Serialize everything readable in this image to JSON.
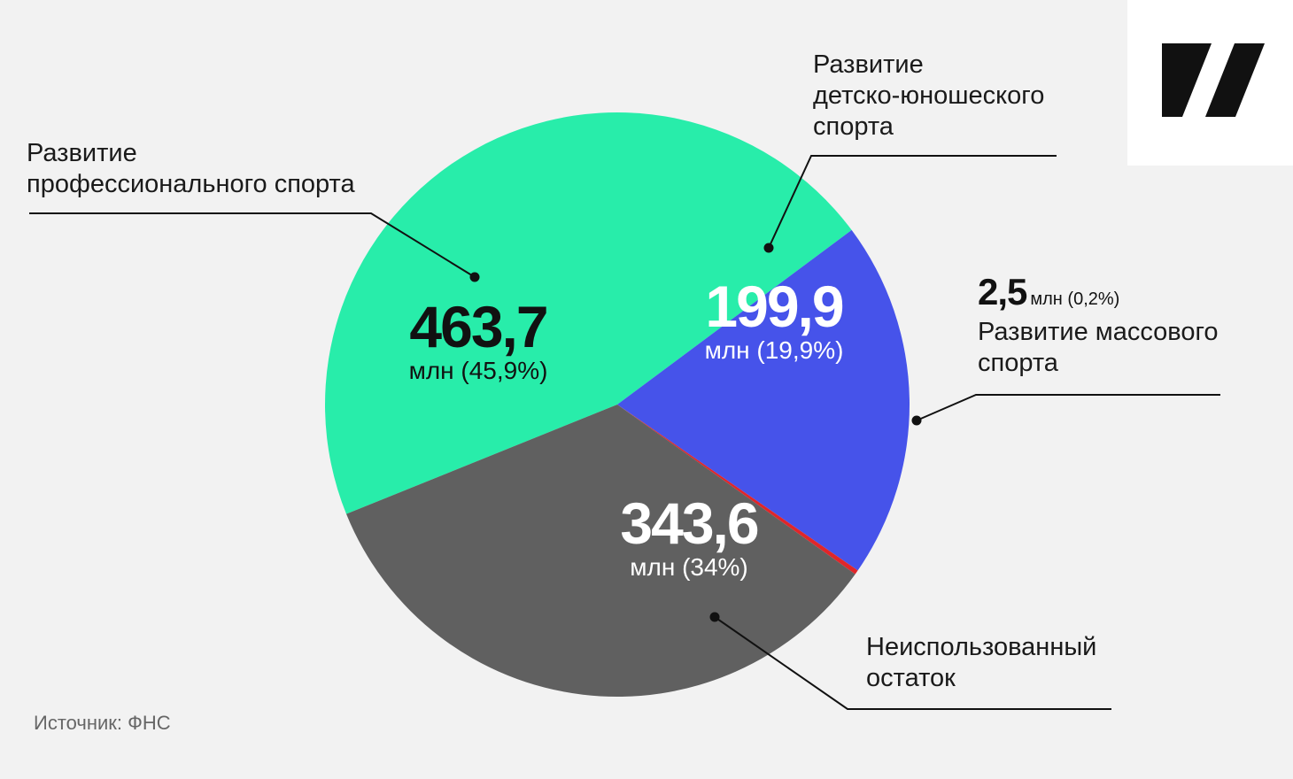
{
  "chart_data": {
    "type": "pie",
    "unit": "млн",
    "slices": [
      {
        "label": "Развитие\nпрофессионального спорта",
        "value": 463.7,
        "value_text": "463,7",
        "sub_text": "млн (45,9%)",
        "color": "#28edaa"
      },
      {
        "label": "Развитие\nдетско-юношеского\nспорта",
        "value": 199.9,
        "value_text": "199,9",
        "sub_text": "млн (19,9%)",
        "color": "#4653ea"
      },
      {
        "label": "Развитие массового\nспорта",
        "value": 2.5,
        "value_text": "2,5",
        "sub_text": "млн (0,2%)",
        "color": "#e0262a"
      },
      {
        "label": "Неиспользованный\nостаток",
        "value": 343.6,
        "value_text": "343,6",
        "sub_text": "млн (34%)",
        "color": "#606060"
      }
    ]
  },
  "source": "Источник: ФНС",
  "logo": {
    "icon": "brand-logo-icon",
    "color": "#111111"
  }
}
